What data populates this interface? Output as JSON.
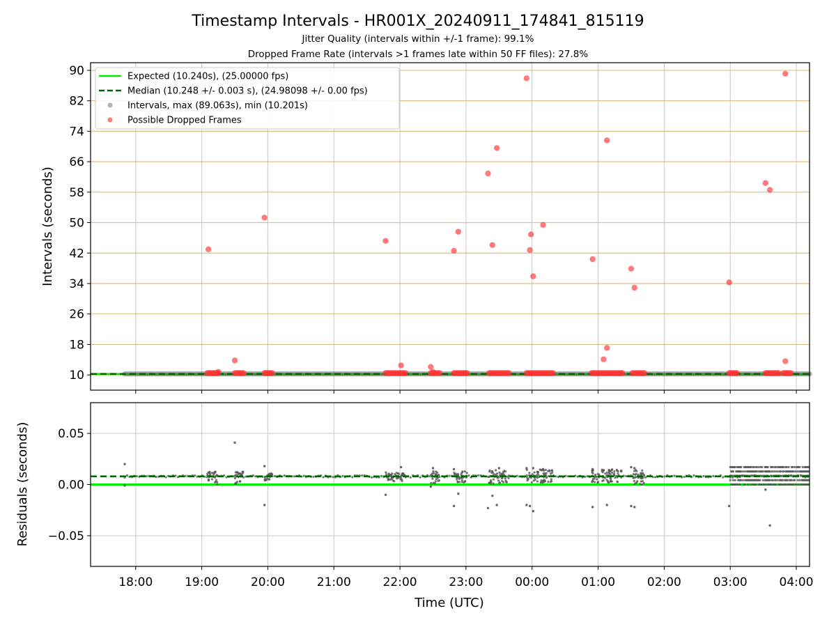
{
  "colors": {
    "expected": "#00ee00",
    "median": "#006400",
    "dropped": "#ff3333",
    "intervals": "#555555",
    "grid_top": "#d4b36a",
    "grid": "#c8c8c8"
  },
  "chart_data": [
    {
      "type": "scatter",
      "title": "Timestamp Intervals - HR001X_20240911_174841_815119",
      "subtitle_1": "Jitter Quality (intervals within +/-1 frame): 99.1%",
      "subtitle_2": "Dropped Frame Rate (intervals >1 frames late within 50 FF files): 27.8%",
      "xlabel": "",
      "ylabel": "Intervals (seconds)",
      "ylim": [
        6,
        92
      ],
      "xlim": [
        "17:19",
        "04:12"
      ],
      "y_ticks": [
        "10",
        "18",
        "26",
        "34",
        "42",
        "50",
        "58",
        "66",
        "74",
        "82",
        "90"
      ],
      "grid": true,
      "legend_position": "top-left",
      "legend": [
        "Expected (10.240s), (25.00000 fps)",
        "Median (10.248 +/- 0.003 s), (24.98098 +/- 0.00 fps)",
        "Intervals, max (89.063s), min (10.201s)",
        "Possible Dropped Frames"
      ],
      "expected_interval": 10.24,
      "median_interval": 10.248,
      "intervals_band": {
        "x_start": "17:50",
        "x_end": "04:12",
        "y": 10.248
      },
      "dropped_runs": [
        {
          "x_start": "19:05",
          "x_end": "19:15",
          "y": 10.5
        },
        {
          "x_start": "19:30",
          "x_end": "19:38",
          "y": 10.5
        },
        {
          "x_start": "19:57",
          "x_end": "20:04",
          "y": 10.5
        },
        {
          "x_start": "21:47",
          "x_end": "22:05",
          "y": 10.5
        },
        {
          "x_start": "22:28",
          "x_end": "22:36",
          "y": 10.5
        },
        {
          "x_start": "22:49",
          "x_end": "23:01",
          "y": 10.5
        },
        {
          "x_start": "23:21",
          "x_end": "23:39",
          "y": 10.5
        },
        {
          "x_start": "23:55",
          "x_end": "00:19",
          "y": 10.5
        },
        {
          "x_start": "00:54",
          "x_end": "01:22",
          "y": 10.5
        },
        {
          "x_start": "01:31",
          "x_end": "01:42",
          "y": 10.5
        },
        {
          "x_start": "02:59",
          "x_end": "03:06",
          "y": 10.5
        },
        {
          "x_start": "03:32",
          "x_end": "03:44",
          "y": 10.5
        },
        {
          "x_start": "03:48",
          "x_end": "03:55",
          "y": 10.5
        }
      ],
      "dropped_points": [
        {
          "x": "19:06",
          "y": 43.0
        },
        {
          "x": "19:15",
          "y": 10.8
        },
        {
          "x": "19:30",
          "y": 13.8
        },
        {
          "x": "19:57",
          "y": 51.3
        },
        {
          "x": "21:47",
          "y": 45.2
        },
        {
          "x": "22:01",
          "y": 12.5
        },
        {
          "x": "22:28",
          "y": 12.1
        },
        {
          "x": "22:30",
          "y": 10.8
        },
        {
          "x": "22:49",
          "y": 42.6
        },
        {
          "x": "22:53",
          "y": 47.6
        },
        {
          "x": "23:20",
          "y": 62.9
        },
        {
          "x": "23:24",
          "y": 44.1
        },
        {
          "x": "23:28",
          "y": 69.6
        },
        {
          "x": "23:55",
          "y": 87.9
        },
        {
          "x": "23:58",
          "y": 42.8
        },
        {
          "x": "23:59",
          "y": 46.9
        },
        {
          "x": "00:01",
          "y": 35.9
        },
        {
          "x": "00:10",
          "y": 49.4
        },
        {
          "x": "00:55",
          "y": 40.4
        },
        {
          "x": "01:05",
          "y": 14.1
        },
        {
          "x": "01:08",
          "y": 17.1
        },
        {
          "x": "01:08",
          "y": 71.6
        },
        {
          "x": "01:30",
          "y": 37.9
        },
        {
          "x": "01:33",
          "y": 32.9
        },
        {
          "x": "02:59",
          "y": 34.3
        },
        {
          "x": "03:32",
          "y": 60.4
        },
        {
          "x": "03:36",
          "y": 58.6
        },
        {
          "x": "03:50",
          "y": 13.6
        },
        {
          "x": "03:50",
          "y": 89.1
        }
      ]
    },
    {
      "type": "scatter",
      "xlabel": "Time (UTC)",
      "ylabel": "Residuals (seconds)",
      "ylim": [
        -0.08,
        0.08
      ],
      "xlim": [
        "17:19",
        "04:12"
      ],
      "y_ticks": [
        "0.05",
        "0.00",
        "−0.05"
      ],
      "x_ticks": [
        "18:00",
        "19:00",
        "20:00",
        "21:00",
        "22:00",
        "23:00",
        "00:00",
        "01:00",
        "02:00",
        "03:00",
        "04:00"
      ],
      "grid": true,
      "expected_residual": 0.0,
      "median_residual": 0.008,
      "baseline_range": {
        "x_start": "17:50",
        "x_end": "04:12",
        "y": 0.008
      },
      "dense_range": {
        "x_start": "03:00",
        "x_end": "04:12",
        "y_min": 0.0,
        "y_max": 0.017
      },
      "clusters": [
        {
          "x_start": "19:05",
          "x_end": "19:15",
          "y_min": 0.0,
          "y_max": 0.013
        },
        {
          "x_start": "19:30",
          "x_end": "19:38",
          "y_min": 0.0,
          "y_max": 0.013
        },
        {
          "x_start": "19:57",
          "x_end": "20:04",
          "y_min": 0.004,
          "y_max": 0.012
        },
        {
          "x_start": "21:47",
          "x_end": "22:05",
          "y_min": 0.003,
          "y_max": 0.012
        },
        {
          "x_start": "22:28",
          "x_end": "22:36",
          "y_min": 0.0,
          "y_max": 0.013
        },
        {
          "x_start": "22:49",
          "x_end": "23:01",
          "y_min": 0.002,
          "y_max": 0.013
        },
        {
          "x_start": "23:21",
          "x_end": "23:39",
          "y_min": 0.0,
          "y_max": 0.014
        },
        {
          "x_start": "23:55",
          "x_end": "00:19",
          "y_min": 0.002,
          "y_max": 0.015
        },
        {
          "x_start": "00:54",
          "x_end": "01:22",
          "y_min": 0.002,
          "y_max": 0.015
        },
        {
          "x_start": "01:31",
          "x_end": "01:42",
          "y_min": 0.0,
          "y_max": 0.015
        }
      ],
      "outliers": [
        {
          "x": "17:50",
          "y": 0.02
        },
        {
          "x": "17:50",
          "y": -0.001
        },
        {
          "x": "19:30",
          "y": 0.041
        },
        {
          "x": "19:57",
          "y": -0.02
        },
        {
          "x": "19:57",
          "y": 0.018
        },
        {
          "x": "21:47",
          "y": -0.01
        },
        {
          "x": "22:01",
          "y": 0.017
        },
        {
          "x": "22:28",
          "y": -0.002
        },
        {
          "x": "22:30",
          "y": 0.016
        },
        {
          "x": "22:49",
          "y": -0.021
        },
        {
          "x": "22:49",
          "y": 0.015
        },
        {
          "x": "22:53",
          "y": -0.009
        },
        {
          "x": "23:20",
          "y": -0.023
        },
        {
          "x": "23:24",
          "y": -0.011
        },
        {
          "x": "23:28",
          "y": -0.02
        },
        {
          "x": "23:30",
          "y": 0.016
        },
        {
          "x": "23:55",
          "y": -0.02
        },
        {
          "x": "23:55",
          "y": 0.016
        },
        {
          "x": "23:58",
          "y": -0.021
        },
        {
          "x": "00:01",
          "y": -0.026
        },
        {
          "x": "00:01",
          "y": 0.016
        },
        {
          "x": "00:10",
          "y": 0.015
        },
        {
          "x": "00:55",
          "y": -0.022
        },
        {
          "x": "00:55",
          "y": 0.015
        },
        {
          "x": "01:05",
          "y": 0.014
        },
        {
          "x": "01:08",
          "y": -0.02
        },
        {
          "x": "01:10",
          "y": 0.014
        },
        {
          "x": "01:30",
          "y": -0.021
        },
        {
          "x": "01:30",
          "y": 0.017
        },
        {
          "x": "01:33",
          "y": -0.022
        },
        {
          "x": "01:33",
          "y": 0.016
        },
        {
          "x": "02:59",
          "y": -0.021
        },
        {
          "x": "03:32",
          "y": -0.005
        },
        {
          "x": "03:36",
          "y": -0.04
        }
      ]
    }
  ]
}
